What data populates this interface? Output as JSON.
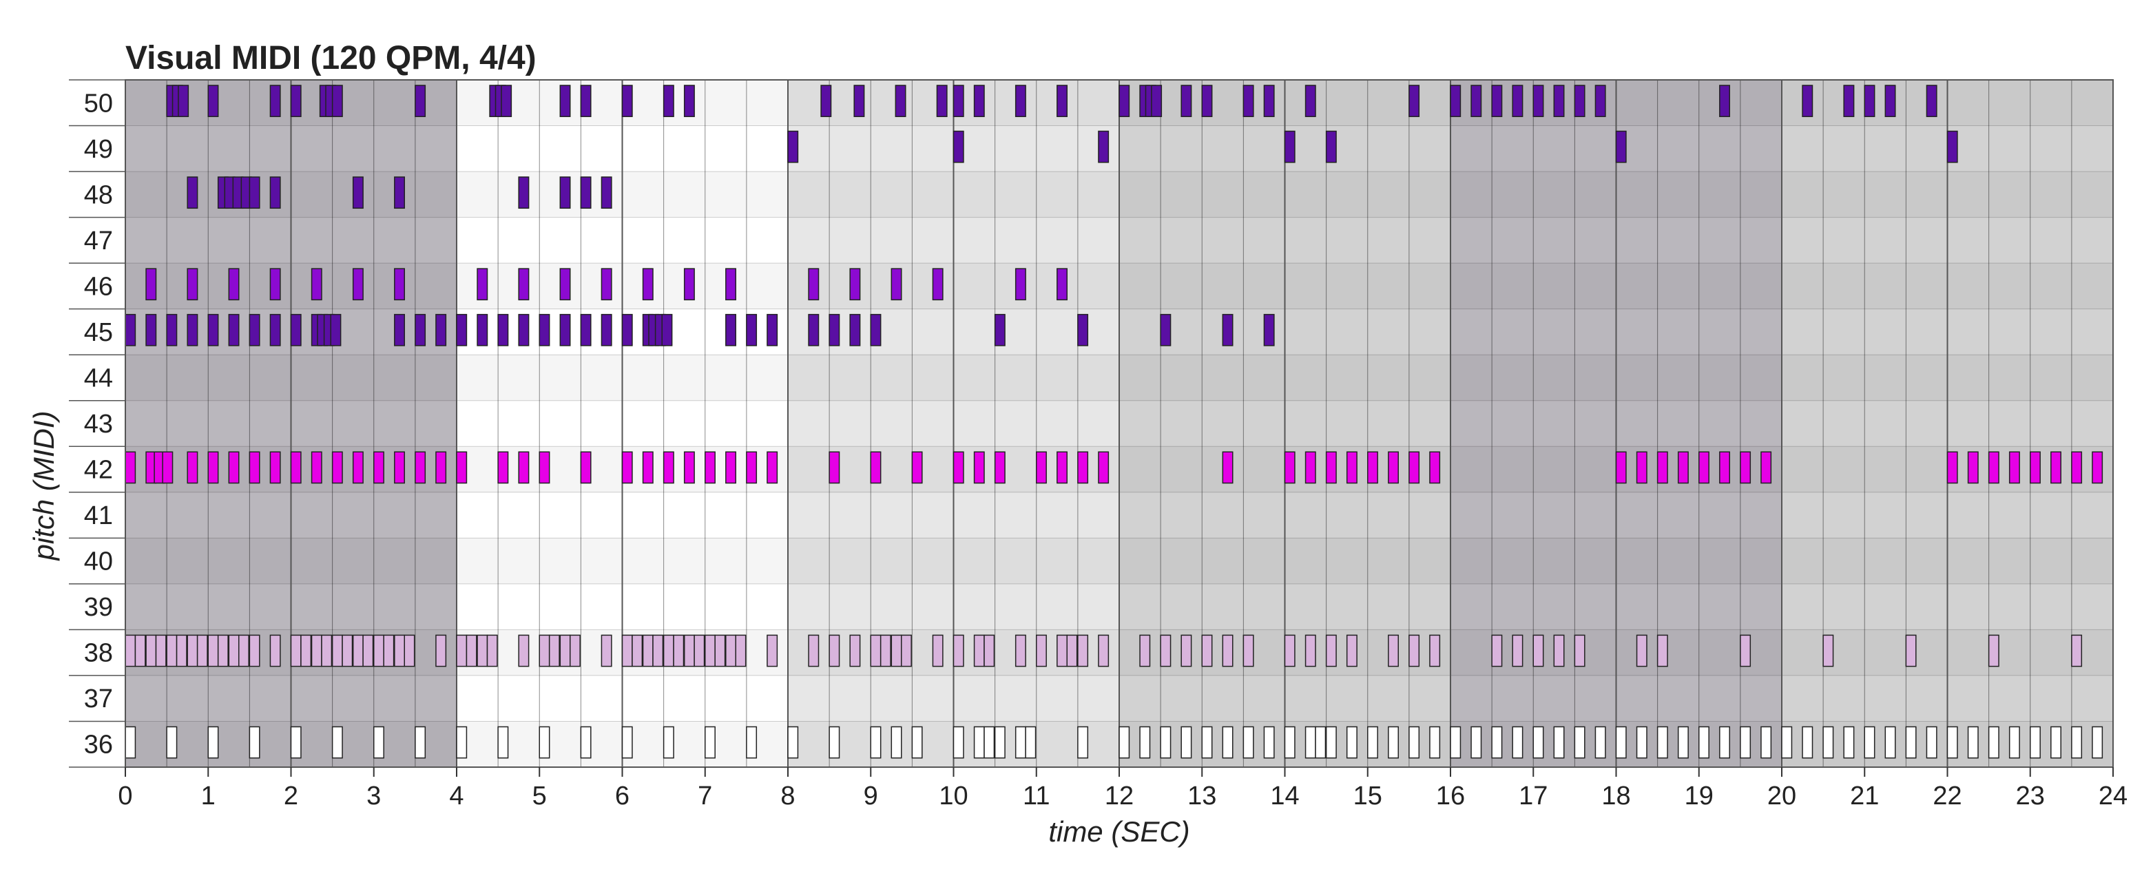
{
  "chart_data": {
    "type": "piano-roll",
    "title": "Visual MIDI (120 QPM, 4/4)",
    "xlabel": "time (SEC)",
    "ylabel": "pitch (MIDI)",
    "xlim": [
      0,
      24
    ],
    "ylim": [
      36,
      50
    ],
    "x_ticks": [
      "0",
      "1",
      "2",
      "3",
      "4",
      "5",
      "6",
      "7",
      "8",
      "9",
      "10",
      "11",
      "12",
      "13",
      "14",
      "15",
      "16",
      "17",
      "18",
      "19",
      "20",
      "21",
      "22",
      "23",
      "24"
    ],
    "y_ticks": [
      "36",
      "37",
      "38",
      "39",
      "40",
      "41",
      "42",
      "43",
      "44",
      "45",
      "46",
      "47",
      "48",
      "49",
      "50"
    ],
    "bar_length_sec": 2,
    "beat_length_sec": 0.5,
    "bar_shading": [
      "dark",
      "dark",
      "white",
      "white",
      "light",
      "light",
      "medium",
      "medium",
      "dark",
      "dark",
      "medium",
      "medium"
    ],
    "shade_colors": {
      "dark": "#bab7bd",
      "light": "#e7e7e7",
      "medium": "#d2d2d2",
      "white": "#ffffff"
    },
    "note_colors": {
      "50": "#5a0fa3",
      "49": "#5a0fa3",
      "48": "#5a0fa3",
      "46": "#8c0ad2",
      "45": "#5a0fa3",
      "42": "#e600e6",
      "38": "#d9b4dd",
      "36": "#ffffff"
    },
    "note_length_sec": 0.12,
    "notes": [
      {
        "pitch": 50,
        "onsets": [
          0.5,
          0.57,
          0.64,
          1.0,
          1.75,
          2.0,
          2.35,
          2.42,
          2.5,
          3.5,
          4.4,
          4.47,
          4.54,
          5.25,
          5.5,
          6.0,
          6.5,
          6.75,
          8.4,
          8.8,
          9.3,
          9.8,
          10.0,
          10.25,
          10.75,
          11.25,
          12.0,
          12.25,
          12.32,
          12.39,
          12.75,
          13.0,
          13.5,
          13.75,
          14.25,
          15.5,
          16.0,
          16.25,
          16.5,
          16.75,
          17.0,
          17.25,
          17.5,
          17.75,
          19.25,
          20.25,
          20.75,
          21.0,
          21.25,
          21.75
        ]
      },
      {
        "pitch": 49,
        "onsets": [
          8.0,
          10.0,
          11.75,
          14.0,
          14.5,
          18.0,
          22.0
        ]
      },
      {
        "pitch": 48,
        "onsets": [
          0.75,
          1.12,
          1.2,
          1.3,
          1.4,
          1.5,
          1.75,
          2.75,
          3.25,
          4.75,
          5.25,
          5.5,
          5.75
        ]
      },
      {
        "pitch": 46,
        "onsets": [
          0.25,
          0.75,
          1.25,
          1.75,
          2.25,
          2.75,
          3.25,
          4.25,
          4.75,
          5.25,
          5.75,
          6.25,
          6.75,
          7.25,
          8.25,
          8.75,
          9.25,
          9.75,
          10.75,
          11.25
        ]
      },
      {
        "pitch": 45,
        "onsets": [
          0.0,
          0.25,
          0.5,
          0.75,
          1.0,
          1.25,
          1.5,
          1.75,
          2.0,
          2.25,
          2.32,
          2.4,
          2.48,
          3.25,
          3.5,
          3.75,
          4.0,
          4.25,
          4.5,
          4.75,
          5.0,
          5.25,
          5.5,
          5.75,
          6.0,
          6.25,
          6.32,
          6.4,
          6.48,
          7.25,
          7.5,
          7.75,
          8.25,
          8.5,
          8.75,
          9.0,
          10.5,
          11.5,
          12.5,
          13.25,
          13.75
        ]
      },
      {
        "pitch": 42,
        "onsets": [
          0.0,
          0.25,
          0.35,
          0.45,
          0.75,
          1.0,
          1.25,
          1.5,
          1.75,
          2.0,
          2.25,
          2.5,
          2.75,
          3.0,
          3.25,
          3.5,
          3.75,
          4.0,
          4.5,
          4.75,
          5.0,
          5.5,
          6.0,
          6.25,
          6.5,
          6.75,
          7.0,
          7.25,
          7.5,
          7.75,
          8.5,
          9.0,
          9.5,
          10.0,
          10.25,
          10.5,
          11.0,
          11.25,
          11.5,
          11.75,
          13.25,
          14.0,
          14.25,
          14.5,
          14.75,
          15.0,
          15.25,
          15.5,
          15.75,
          18.0,
          18.25,
          18.5,
          18.75,
          19.0,
          19.25,
          19.5,
          19.75,
          22.0,
          22.25,
          22.5,
          22.75,
          23.0,
          23.25,
          23.5,
          23.75
        ]
      },
      {
        "pitch": 38,
        "onsets": [
          0.0,
          0.12,
          0.25,
          0.37,
          0.5,
          0.62,
          0.75,
          0.87,
          1.0,
          1.12,
          1.25,
          1.37,
          1.5,
          1.75,
          2.0,
          2.12,
          2.25,
          2.37,
          2.5,
          2.62,
          2.75,
          2.87,
          3.0,
          3.12,
          3.25,
          3.37,
          3.75,
          4.0,
          4.12,
          4.25,
          4.37,
          4.75,
          5.0,
          5.12,
          5.25,
          5.37,
          5.75,
          6.0,
          6.12,
          6.25,
          6.37,
          6.5,
          6.62,
          6.75,
          6.87,
          7.0,
          7.12,
          7.25,
          7.37,
          7.75,
          8.25,
          8.5,
          8.75,
          9.0,
          9.12,
          9.25,
          9.37,
          9.75,
          10.0,
          10.25,
          10.37,
          10.75,
          11.0,
          11.25,
          11.37,
          11.5,
          11.75,
          12.25,
          12.5,
          12.75,
          13.0,
          13.25,
          13.5,
          14.0,
          14.25,
          14.5,
          14.75,
          15.25,
          15.5,
          15.75,
          16.5,
          16.75,
          17.0,
          17.25,
          17.5,
          18.25,
          18.5,
          19.5,
          20.5,
          21.5,
          22.5,
          23.5
        ]
      },
      {
        "pitch": 36,
        "onsets": [
          0.0,
          0.5,
          1.0,
          1.5,
          2.0,
          2.5,
          3.0,
          3.5,
          4.0,
          4.5,
          5.0,
          5.5,
          6.0,
          6.5,
          7.0,
          7.5,
          8.0,
          8.5,
          9.0,
          9.25,
          9.5,
          10.0,
          10.25,
          10.37,
          10.5,
          10.75,
          10.87,
          11.5,
          12.0,
          12.25,
          12.5,
          12.75,
          13.0,
          13.25,
          13.5,
          13.75,
          14.0,
          14.25,
          14.37,
          14.5,
          14.75,
          15.0,
          15.25,
          15.5,
          15.75,
          16.0,
          16.25,
          16.5,
          16.75,
          17.0,
          17.25,
          17.5,
          17.75,
          18.0,
          18.25,
          18.5,
          18.75,
          19.0,
          19.25,
          19.5,
          19.75,
          20.0,
          20.25,
          20.5,
          20.75,
          21.0,
          21.25,
          21.5,
          21.75,
          22.0,
          22.25,
          22.5,
          22.75,
          23.0,
          23.25,
          23.5,
          23.75
        ]
      }
    ]
  }
}
